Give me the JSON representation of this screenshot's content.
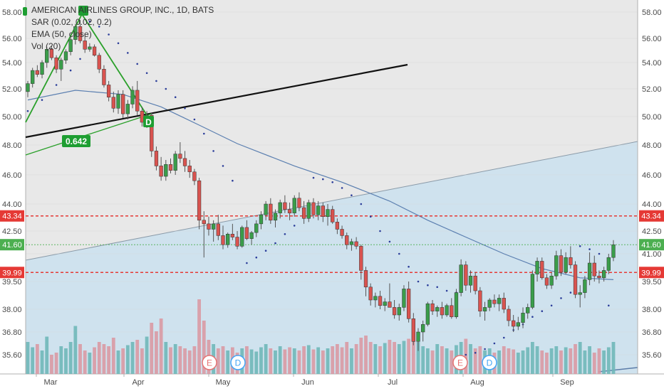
{
  "chart_data": {
    "type": "candlestick",
    "title": "AMERICAN AIRLINES GROUP, INC., 1D, BATS",
    "indicators": [
      "SAR (0.02, 0.02, 0.2)",
      "EMA (50, close)",
      "Vol (20)"
    ],
    "y_ticks": [
      "58.00",
      "56.00",
      "54.00",
      "52.00",
      "50.00",
      "48.00",
      "46.00",
      "44.00",
      "42.50",
      "41.00",
      "39.50",
      "38.00",
      "36.80",
      "35.60"
    ],
    "x_ticks": [
      "Mar",
      "Apr",
      "May",
      "Jun",
      "Jul",
      "Aug",
      "Sep"
    ],
    "price_labels": [
      {
        "text": "43.34",
        "value": 43.34,
        "color": "#e53935"
      },
      {
        "text": "41.60",
        "value": 41.6,
        "color": "#4caf50"
      },
      {
        "text": "39.99",
        "value": 39.99,
        "color": "#e53935"
      }
    ],
    "annotation": "0.642",
    "dividend_marker": "D",
    "event_markers": [
      {
        "text": "E",
        "kind": "earnings",
        "color": "#e57373"
      },
      {
        "text": "D",
        "kind": "dividend",
        "color": "#42a5f5"
      },
      {
        "text": "E",
        "kind": "earnings",
        "color": "#e57373"
      },
      {
        "text": "D",
        "kind": "dividend",
        "color": "#42a5f5"
      }
    ],
    "ohlc": [
      [
        51.8,
        52.6,
        51.4,
        52.4
      ],
      [
        52.4,
        53.6,
        52.1,
        53.4
      ],
      [
        53.4,
        53.8,
        52.9,
        53.1
      ],
      [
        53.1,
        54.2,
        52.8,
        54.0
      ],
      [
        54.0,
        55.3,
        53.6,
        55.1
      ],
      [
        55.1,
        55.4,
        54.2,
        54.4
      ],
      [
        54.4,
        54.6,
        53.2,
        53.5
      ],
      [
        53.5,
        54.4,
        52.6,
        54.2
      ],
      [
        54.2,
        55.1,
        53.9,
        54.9
      ],
      [
        54.9,
        56.1,
        54.6,
        55.9
      ],
      [
        55.9,
        57.1,
        55.5,
        56.9
      ],
      [
        56.9,
        57.4,
        55.6,
        55.8
      ],
      [
        55.8,
        56.2,
        54.8,
        55.1
      ],
      [
        55.1,
        55.6,
        54.9,
        55.3
      ],
      [
        55.3,
        55.5,
        54.5,
        54.6
      ],
      [
        54.6,
        54.8,
        53.2,
        53.5
      ],
      [
        53.5,
        53.8,
        52.1,
        52.3
      ],
      [
        52.3,
        52.6,
        51.1,
        51.4
      ],
      [
        51.4,
        51.8,
        50.3,
        50.6
      ],
      [
        50.6,
        51.9,
        50.2,
        51.6
      ],
      [
        51.6,
        51.9,
        49.9,
        50.2
      ],
      [
        50.2,
        51.2,
        49.8,
        50.9
      ],
      [
        50.9,
        52.2,
        50.6,
        51.9
      ],
      [
        51.9,
        52.6,
        50.1,
        50.4
      ],
      [
        50.4,
        50.7,
        49.3,
        49.6
      ],
      [
        49.6,
        50.4,
        49.2,
        50.1
      ],
      [
        50.1,
        50.3,
        47.2,
        47.6
      ],
      [
        47.6,
        47.9,
        46.3,
        46.6
      ],
      [
        46.6,
        47.2,
        45.6,
        45.9
      ],
      [
        45.9,
        47.0,
        45.6,
        46.7
      ],
      [
        46.7,
        47.1,
        46.1,
        46.3
      ],
      [
        46.3,
        47.6,
        46.0,
        47.4
      ],
      [
        47.4,
        48.2,
        46.8,
        47.1
      ],
      [
        47.1,
        47.6,
        46.2,
        46.6
      ],
      [
        46.6,
        47.0,
        45.8,
        46.2
      ],
      [
        46.2,
        46.4,
        45.3,
        45.6
      ],
      [
        45.6,
        45.8,
        42.6,
        43.1
      ],
      [
        43.1,
        43.6,
        40.8,
        42.9
      ],
      [
        42.9,
        43.3,
        42.2,
        42.6
      ],
      [
        42.6,
        43.1,
        41.8,
        42.9
      ],
      [
        42.9,
        43.4,
        41.9,
        42.2
      ],
      [
        42.2,
        42.8,
        41.3,
        41.6
      ],
      [
        41.6,
        42.4,
        41.4,
        42.3
      ],
      [
        42.3,
        42.9,
        41.9,
        42.1
      ],
      [
        42.1,
        42.5,
        41.3,
        41.5
      ],
      [
        41.5,
        42.8,
        41.4,
        42.7
      ],
      [
        42.7,
        43.1,
        41.9,
        42.0
      ],
      [
        42.0,
        42.5,
        41.6,
        42.4
      ],
      [
        42.4,
        43.1,
        42.1,
        42.9
      ],
      [
        42.9,
        43.6,
        42.6,
        43.4
      ],
      [
        43.4,
        44.2,
        43.1,
        44.0
      ],
      [
        44.0,
        44.4,
        42.9,
        43.1
      ],
      [
        43.1,
        43.7,
        42.7,
        43.5
      ],
      [
        43.5,
        44.3,
        43.2,
        44.1
      ],
      [
        44.1,
        44.6,
        43.5,
        43.7
      ],
      [
        43.7,
        44.1,
        43.1,
        43.5
      ],
      [
        43.5,
        44.6,
        43.3,
        44.4
      ],
      [
        44.4,
        44.8,
        43.6,
        43.8
      ],
      [
        43.8,
        44.2,
        42.9,
        43.2
      ],
      [
        43.2,
        44.3,
        43.0,
        44.1
      ],
      [
        44.1,
        44.4,
        43.2,
        43.4
      ],
      [
        43.4,
        44.2,
        43.1,
        43.9
      ],
      [
        43.9,
        44.1,
        43.0,
        43.3
      ],
      [
        43.3,
        44.0,
        42.8,
        43.7
      ],
      [
        43.7,
        43.9,
        42.9,
        43.0
      ],
      [
        43.0,
        43.2,
        42.3,
        42.6
      ],
      [
        42.6,
        42.8,
        42.0,
        42.2
      ],
      [
        42.2,
        42.4,
        41.3,
        41.6
      ],
      [
        41.6,
        42.0,
        41.2,
        41.8
      ],
      [
        41.8,
        42.1,
        41.3,
        41.5
      ],
      [
        41.5,
        41.6,
        39.6,
        40.1
      ],
      [
        40.1,
        40.3,
        38.7,
        39.2
      ],
      [
        39.2,
        39.4,
        38.2,
        38.5
      ],
      [
        38.5,
        38.9,
        38.1,
        38.7
      ],
      [
        38.7,
        39.0,
        38.0,
        38.2
      ],
      [
        38.2,
        38.6,
        37.9,
        38.4
      ],
      [
        38.4,
        39.4,
        38.1,
        38.1
      ],
      [
        38.1,
        38.5,
        37.5,
        37.7
      ],
      [
        37.7,
        38.3,
        37.4,
        38.1
      ],
      [
        38.1,
        39.3,
        37.9,
        39.1
      ],
      [
        39.1,
        39.5,
        37.3,
        37.5
      ],
      [
        37.5,
        37.8,
        36.1,
        36.3
      ],
      [
        36.3,
        37.0,
        35.8,
        36.8
      ],
      [
        36.8,
        37.4,
        36.3,
        37.2
      ],
      [
        37.2,
        38.4,
        37.1,
        38.3
      ],
      [
        38.3,
        38.5,
        37.7,
        37.9
      ],
      [
        37.9,
        38.2,
        37.6,
        38.1
      ],
      [
        38.1,
        38.4,
        37.5,
        37.7
      ],
      [
        37.7,
        38.3,
        37.6,
        38.2
      ],
      [
        38.2,
        38.6,
        37.5,
        37.6
      ],
      [
        37.6,
        39.1,
        37.5,
        38.9
      ],
      [
        38.9,
        40.7,
        38.7,
        40.4
      ],
      [
        40.4,
        40.6,
        39.0,
        39.3
      ],
      [
        39.3,
        40.1,
        38.9,
        39.8
      ],
      [
        39.8,
        40.0,
        38.8,
        39.0
      ],
      [
        39.0,
        39.2,
        37.6,
        37.9
      ],
      [
        37.9,
        38.4,
        37.4,
        38.1
      ],
      [
        38.1,
        38.6,
        37.9,
        38.5
      ],
      [
        38.5,
        38.8,
        38.1,
        38.3
      ],
      [
        38.3,
        38.8,
        37.9,
        38.6
      ],
      [
        38.6,
        38.9,
        37.8,
        38.0
      ],
      [
        38.0,
        38.2,
        37.1,
        37.4
      ],
      [
        37.4,
        37.7,
        36.8,
        37.1
      ],
      [
        37.1,
        37.6,
        36.9,
        37.3
      ],
      [
        37.3,
        38.1,
        37.0,
        37.8
      ],
      [
        37.8,
        38.3,
        37.5,
        38.1
      ],
      [
        38.1,
        40.1,
        38.0,
        39.9
      ],
      [
        39.9,
        40.8,
        39.5,
        40.6
      ],
      [
        40.6,
        40.8,
        39.6,
        39.7
      ],
      [
        39.7,
        39.9,
        39.1,
        39.3
      ],
      [
        39.3,
        40.0,
        39.1,
        39.8
      ],
      [
        39.8,
        41.2,
        39.6,
        40.9
      ],
      [
        40.9,
        41.3,
        39.8,
        40.0
      ],
      [
        40.0,
        41.1,
        39.9,
        40.8
      ],
      [
        40.8,
        41.5,
        40.2,
        40.4
      ],
      [
        40.4,
        40.6,
        38.6,
        38.8
      ],
      [
        38.8,
        39.3,
        38.1,
        38.9
      ],
      [
        38.9,
        39.8,
        38.6,
        39.6
      ],
      [
        39.6,
        41.1,
        39.3,
        40.5
      ],
      [
        40.5,
        40.9,
        39.5,
        39.8
      ],
      [
        39.8,
        40.1,
        39.4,
        39.7
      ],
      [
        39.7,
        40.3,
        39.5,
        40.1
      ],
      [
        40.1,
        41.0,
        39.9,
        40.8
      ],
      [
        40.8,
        41.9,
        40.6,
        41.6
      ]
    ],
    "ema": [
      [
        0,
        51.2
      ],
      [
        10,
        51.9
      ],
      [
        20,
        51.6
      ],
      [
        28,
        50.7
      ],
      [
        36,
        49.4
      ],
      [
        44,
        48.1
      ],
      [
        56,
        46.6
      ],
      [
        66,
        45.5
      ],
      [
        76,
        44.2
      ],
      [
        84,
        43.1
      ],
      [
        92,
        42.1
      ],
      [
        100,
        41.0
      ],
      [
        108,
        40.2
      ],
      [
        116,
        39.7
      ],
      [
        123,
        39.6
      ]
    ],
    "sar": [
      [
        0,
        50.4
      ],
      [
        3,
        51.2
      ],
      [
        6,
        52.3
      ],
      [
        9,
        53.4
      ],
      [
        11,
        54.3
      ],
      [
        13,
        57.3
      ],
      [
        15,
        56.9
      ],
      [
        17,
        56.3
      ],
      [
        19,
        55.6
      ],
      [
        21,
        54.8
      ],
      [
        23,
        53.9
      ],
      [
        25,
        53.2
      ],
      [
        27,
        52.6
      ],
      [
        29,
        52.0
      ],
      [
        31,
        51.4
      ],
      [
        33,
        50.6
      ],
      [
        35,
        49.8
      ],
      [
        37,
        48.8
      ],
      [
        39,
        47.6
      ],
      [
        41,
        46.6
      ],
      [
        43,
        45.6
      ],
      [
        46,
        40.5
      ],
      [
        48,
        40.8
      ],
      [
        50,
        41.2
      ],
      [
        52,
        41.7
      ],
      [
        54,
        42.3
      ],
      [
        56,
        42.8
      ],
      [
        58,
        43.3
      ],
      [
        60,
        45.8
      ],
      [
        62,
        45.7
      ],
      [
        64,
        45.5
      ],
      [
        66,
        45.1
      ],
      [
        68,
        44.6
      ],
      [
        70,
        44.0
      ],
      [
        72,
        43.3
      ],
      [
        74,
        42.5
      ],
      [
        76,
        41.8
      ],
      [
        78,
        41.0
      ],
      [
        80,
        40.3
      ],
      [
        82,
        39.5
      ],
      [
        84,
        39.3
      ],
      [
        86,
        39.2
      ],
      [
        88,
        39.0
      ],
      [
        90,
        38.9
      ],
      [
        92,
        35.6
      ],
      [
        94,
        35.7
      ],
      [
        96,
        35.9
      ],
      [
        98,
        36.2
      ],
      [
        100,
        36.5
      ],
      [
        102,
        36.9
      ],
      [
        104,
        37.2
      ],
      [
        106,
        37.6
      ],
      [
        108,
        37.9
      ],
      [
        110,
        38.2
      ],
      [
        112,
        38.6
      ],
      [
        114,
        38.9
      ],
      [
        116,
        41.5
      ],
      [
        118,
        41.3
      ],
      [
        120,
        41.0
      ],
      [
        122,
        38.2
      ]
    ],
    "volume": [
      0.3,
      0.25,
      0.28,
      0.22,
      0.35,
      0.18,
      0.2,
      0.26,
      0.24,
      0.3,
      0.45,
      0.28,
      0.22,
      0.2,
      0.25,
      0.3,
      0.28,
      0.26,
      0.34,
      0.22,
      0.24,
      0.27,
      0.3,
      0.32,
      0.24,
      0.35,
      0.48,
      0.4,
      0.52,
      0.3,
      0.25,
      0.28,
      0.26,
      0.24,
      0.22,
      0.26,
      0.7,
      0.5,
      0.32,
      0.28,
      0.24,
      0.26,
      0.22,
      0.25,
      0.2,
      0.24,
      0.26,
      0.23,
      0.21,
      0.25,
      0.28,
      0.24,
      0.22,
      0.26,
      0.23,
      0.25,
      0.24,
      0.22,
      0.26,
      0.27,
      0.23,
      0.25,
      0.22,
      0.24,
      0.26,
      0.28,
      0.25,
      0.3,
      0.24,
      0.28,
      0.34,
      0.36,
      0.3,
      0.28,
      0.26,
      0.29,
      0.32,
      0.3,
      0.28,
      0.31,
      0.33,
      0.35,
      0.3,
      0.26,
      0.24,
      0.22,
      0.28,
      0.26,
      0.24,
      0.22,
      0.27,
      0.3,
      0.33,
      0.28,
      0.24,
      0.26,
      0.22,
      0.24,
      0.2,
      0.22,
      0.26,
      0.24,
      0.23,
      0.2,
      0.22,
      0.25,
      0.3,
      0.26,
      0.22,
      0.2,
      0.24,
      0.26,
      0.22,
      0.25,
      0.24,
      0.28,
      0.3,
      0.22,
      0.26,
      0.2,
      0.24,
      0.22,
      0.25,
      0.3
    ]
  }
}
